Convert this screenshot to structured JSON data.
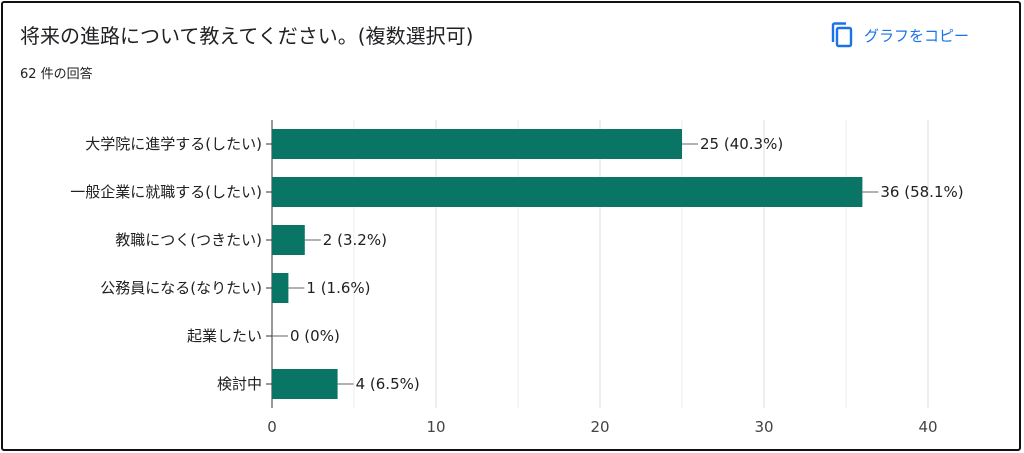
{
  "card": {
    "title": "将来の進路について教えてください。(複数選択可)",
    "response_count": "62 件の回答",
    "copy_button_label": "グラフをコピー",
    "accent_color": "#1a73e8",
    "bar_color": "#0b7565"
  },
  "chart_data": {
    "type": "bar",
    "orientation": "horizontal",
    "categories": [
      "大学院に進学する(したい)",
      "一般企業に就職する(したい)",
      "教職につく(つきたい)",
      "公務員になる(なりたい)",
      "起業したい",
      "検討中"
    ],
    "values": [
      25,
      36,
      2,
      1,
      0,
      4
    ],
    "value_labels": [
      "25 (40.3%)",
      "36 (58.1%)",
      "2 (3.2%)",
      "1 (1.6%)",
      "0 (0%)",
      "4 (6.5%)"
    ],
    "xlim": [
      0,
      40
    ],
    "xticks": [
      0,
      10,
      20,
      30,
      40
    ],
    "grid": true
  }
}
